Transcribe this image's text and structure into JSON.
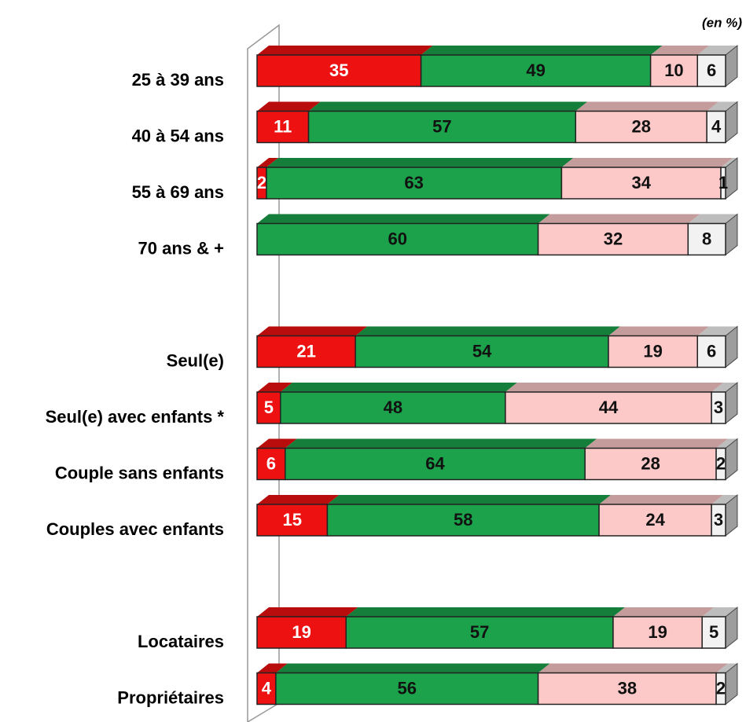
{
  "chart_data": {
    "type": "bar",
    "orientation": "horizontal",
    "stacked": true,
    "annotation": "(en %)",
    "categories": [
      "25 à 39 ans",
      "40 à 54 ans",
      "55 à 69 ans",
      "70 ans & +",
      null,
      "Seul(e)",
      "Seul(e) avec enfants *",
      "Couple sans enfants",
      "Couples avec enfants",
      null,
      "Locataires",
      "Propriétaires"
    ],
    "xlim": [
      0,
      100
    ],
    "series": [
      {
        "color": "#ee1111",
        "values": [
          35,
          11,
          2,
          null,
          null,
          21,
          5,
          6,
          15,
          null,
          19,
          4
        ]
      },
      {
        "color": "#1ca24b",
        "values": [
          49,
          57,
          63,
          60,
          null,
          54,
          48,
          64,
          58,
          null,
          57,
          56
        ]
      },
      {
        "color": "#fcc8c8",
        "values": [
          10,
          28,
          34,
          32,
          null,
          19,
          44,
          28,
          24,
          null,
          19,
          38
        ]
      },
      {
        "color": "#f2f2f2",
        "values": [
          6,
          4,
          1,
          8,
          null,
          6,
          3,
          2,
          3,
          null,
          5,
          2
        ]
      }
    ]
  }
}
